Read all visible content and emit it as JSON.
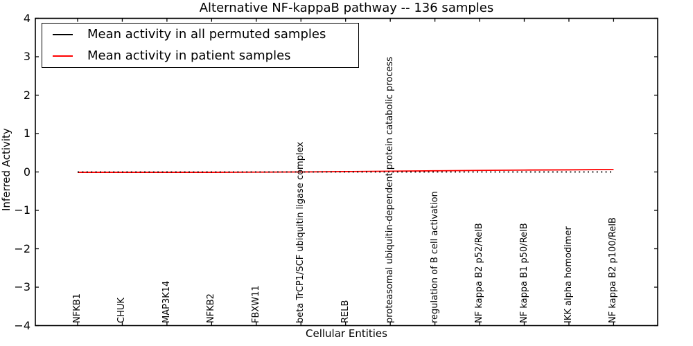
{
  "chart_data": {
    "type": "line",
    "title": "Alternative NF-kappaB pathway -- 136 samples",
    "xlabel": "Cellular Entities",
    "ylabel": "Inferred Activity",
    "ylim": [
      -4,
      4
    ],
    "yticks": [
      4,
      3,
      2,
      1,
      0,
      -1,
      -2,
      -3,
      -4
    ],
    "ytick_labels": [
      "4",
      "3",
      "2",
      "1",
      "0",
      "−1",
      "−2",
      "−3",
      "−4"
    ],
    "categories": [
      "NFKB1",
      "CHUK",
      "MAP3K14",
      "NFKB2",
      "FBXW11",
      "beta TrCP1/SCF ubiquitin ligase complex",
      "RELB",
      "proteasomal ubiquitin-dependent protein catabolic process",
      "regulation of B cell activation",
      "NF kappa B2 p52/RelB",
      "NF kappa B1 p50/RelB",
      "IKK alpha homodimer",
      "NF kappa B2 p100/RelB"
    ],
    "series": [
      {
        "name": "Mean activity in all permuted samples",
        "color": "#000000",
        "linestyle": "dotted",
        "legend_linestyle": "solid",
        "values": [
          0,
          0,
          0,
          0,
          0,
          0,
          0,
          0,
          0,
          0,
          0,
          0,
          0
        ]
      },
      {
        "name": "Mean activity in patient samples",
        "color": "#ff0000",
        "linestyle": "solid",
        "legend_linestyle": "solid",
        "values": [
          -0.01,
          -0.01,
          -0.01,
          -0.01,
          -0.005,
          0.0,
          0.01,
          0.02,
          0.03,
          0.04,
          0.05,
          0.055,
          0.065
        ]
      }
    ],
    "legend_position": "upper left",
    "grid": false,
    "frame_color": "#000000",
    "background_color": "#ffffff"
  }
}
